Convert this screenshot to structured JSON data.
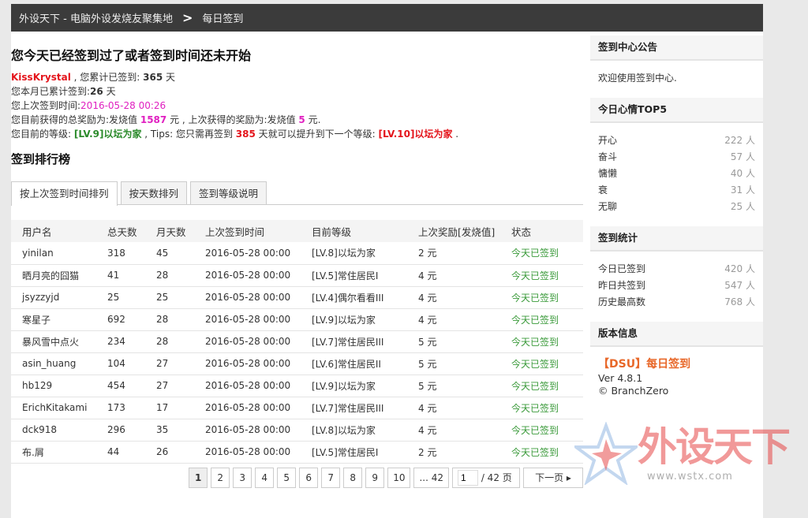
{
  "breadcrumb": {
    "site": "外设天下 - 电脑外设发烧友聚集地",
    "sep": ">",
    "page": "每日签到"
  },
  "status": {
    "title": "您今天已经签到过了或者签到时间还未开始",
    "username": "KissKrystal",
    "total_prefix": " , 您累计已签到: ",
    "total_days": "365",
    "day_unit": " 天",
    "month_prefix": "您本月已累计签到:",
    "month_days": "26",
    "last_prefix": "您上次签到时间:",
    "last_time": "2016-05-28 00:26",
    "reward_prefix": "您目前获得的总奖励为:发烧值 ",
    "reward_total": "1587",
    "reward_mid": " 元 , 上次获得的奖励为:发烧值 ",
    "reward_last": "5",
    "reward_suffix": " 元.",
    "level_prefix": "您目前的等级: ",
    "level": "[LV.9]以坛为家",
    "tips_prefix": " , Tips: 您只需再签到 ",
    "days_needed": "385",
    "tips_mid": " 天就可以提升到下一个等级: ",
    "next_level": "[LV.10]以坛为家",
    "tips_suffix": " ."
  },
  "ranking": {
    "title": "签到排行榜",
    "tabs": [
      "按上次签到时间排列",
      "按天数排列",
      "签到等级说明"
    ],
    "columns": [
      "用户名",
      "总天数",
      "月天数",
      "上次签到时间",
      "目前等级",
      "上次奖励[发烧值]",
      "状态"
    ],
    "rows": [
      [
        "yinilan",
        "318",
        "45",
        "2016-05-28 00:00",
        "[LV.8]以坛为家",
        "2 元",
        "今天已签到"
      ],
      [
        "晒月亮的囧猫",
        "41",
        "28",
        "2016-05-28 00:00",
        "[LV.5]常住居民I",
        "4 元",
        "今天已签到"
      ],
      [
        "jsyzzyjd",
        "25",
        "25",
        "2016-05-28 00:00",
        "[LV.4]偶尔看看III",
        "4 元",
        "今天已签到"
      ],
      [
        "寒星子",
        "692",
        "28",
        "2016-05-28 00:00",
        "[LV.9]以坛为家",
        "4 元",
        "今天已签到"
      ],
      [
        "暴风雪中点火",
        "234",
        "28",
        "2016-05-28 00:00",
        "[LV.7]常住居民III",
        "5 元",
        "今天已签到"
      ],
      [
        "asin_huang",
        "104",
        "27",
        "2016-05-28 00:00",
        "[LV.6]常住居民II",
        "5 元",
        "今天已签到"
      ],
      [
        "hb129",
        "454",
        "27",
        "2016-05-28 00:00",
        "[LV.9]以坛为家",
        "5 元",
        "今天已签到"
      ],
      [
        "ErichKitakami",
        "173",
        "17",
        "2016-05-28 00:00",
        "[LV.7]常住居民III",
        "4 元",
        "今天已签到"
      ],
      [
        "dck918",
        "296",
        "35",
        "2016-05-28 00:00",
        "[LV.8]以坛为家",
        "4 元",
        "今天已签到"
      ],
      [
        "布.屑",
        "44",
        "26",
        "2016-05-28 00:00",
        "[LV.5]常住居民I",
        "2 元",
        "今天已签到"
      ]
    ]
  },
  "pager": {
    "pages": [
      "1",
      "2",
      "3",
      "4",
      "5",
      "6",
      "7",
      "8",
      "9",
      "10"
    ],
    "current": "1",
    "last": "... 42",
    "input": "1",
    "total": "/ 42 页",
    "next": "下一页"
  },
  "sidebar": {
    "notice": {
      "title": "签到中心公告",
      "text": "欢迎使用签到中心."
    },
    "mood": {
      "title": "今日心情TOP5",
      "items": [
        {
          "k": "开心",
          "v": "222 人"
        },
        {
          "k": "奋斗",
          "v": "57 人"
        },
        {
          "k": "慵懒",
          "v": "40 人"
        },
        {
          "k": "衰",
          "v": "31 人"
        },
        {
          "k": "无聊",
          "v": "25 人"
        }
      ]
    },
    "stats": {
      "title": "签到统计",
      "items": [
        {
          "k": "今日已签到",
          "v": "420 人"
        },
        {
          "k": "昨日共签到",
          "v": "547 人"
        },
        {
          "k": "历史最高数",
          "v": "768 人"
        }
      ]
    },
    "version": {
      "title": "版本信息",
      "name": "【DSU】每日签到",
      "ver": "Ver 4.8.1",
      "author": "© BranchZero"
    }
  },
  "watermark": {
    "text": "外设天下",
    "url": "www.wstx.com"
  }
}
